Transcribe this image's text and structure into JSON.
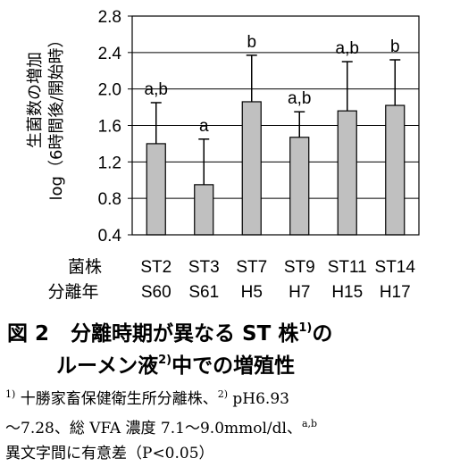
{
  "chart_data": {
    "type": "bar",
    "ylabel_line1": "生菌数の増加",
    "ylabel_line2": "log（6時間後/開始時）",
    "ylim": [
      0.4,
      2.8
    ],
    "yticks": [
      "0.4",
      "0.8",
      "1.2",
      "1.6",
      "2.0",
      "2.4",
      "2.8"
    ],
    "grid": true,
    "row_label_1": "菌株",
    "row_label_2": "分離年",
    "categories": [
      {
        "strain": "ST2",
        "year": "S60"
      },
      {
        "strain": "ST3",
        "year": "S61"
      },
      {
        "strain": "ST7",
        "year": "H5"
      },
      {
        "strain": "ST9",
        "year": "H7"
      },
      {
        "strain": "ST11",
        "year": "H15"
      },
      {
        "strain": "ST14",
        "year": "H17"
      }
    ],
    "values": [
      1.4,
      0.95,
      1.86,
      1.47,
      1.76,
      1.82
    ],
    "error_upper": [
      1.85,
      1.45,
      2.37,
      1.75,
      2.3,
      2.32
    ],
    "significance": [
      "a,b",
      "a",
      "b",
      "a,b",
      "a,b",
      "b"
    ],
    "colors": {
      "bar": "#c0c0c0",
      "stroke": "#000000",
      "grid": "#000000"
    }
  },
  "caption": {
    "fig_no": "図 2",
    "line1_text": "分離時期が異なる ST 株",
    "line1_sup": "1)",
    "line1_tail": "の",
    "line2_text": "ルーメン液",
    "line2_sup": "2)",
    "line2_tail": "中での増殖性"
  },
  "notes": {
    "sup1": "1)",
    "text1": "十勝家畜保健衛生所分離株、",
    "sup2": "2)",
    "text2": "pH6.93",
    "text3": "〜7.28、総 VFA 濃度 7.1〜9.0mmol/dl、",
    "sup3": "a,b",
    "text4": "異文字間に有意差（P<0.05）"
  }
}
